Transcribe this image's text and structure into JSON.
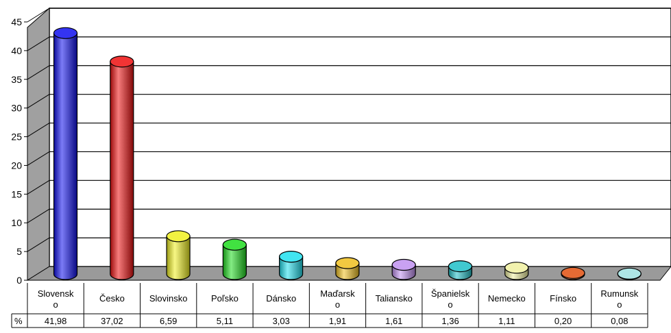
{
  "chart_data": {
    "type": "bar",
    "style": "3d-cylinder",
    "categories": [
      "Slovensko",
      "Česko",
      "Slovinsko",
      "Poľsko",
      "Dánsko",
      "Maďarsko",
      "Taliansko",
      "Španielsko",
      "Nemecko",
      "Fínsko",
      "Rumunsko"
    ],
    "category_labels_display": [
      [
        "Slovensk",
        "o"
      ],
      [
        "Česko"
      ],
      [
        "Slovinsko"
      ],
      [
        "Poľsko"
      ],
      [
        "Dánsko"
      ],
      [
        "Maďarsk",
        "o"
      ],
      [
        "Taliansko"
      ],
      [
        "Španielsk",
        "o"
      ],
      [
        "Nemecko"
      ],
      [
        "Fínsko"
      ],
      [
        "Rumunsk",
        "o"
      ]
    ],
    "values": [
      41.98,
      37.02,
      6.59,
      5.11,
      3.03,
      1.91,
      1.61,
      1.36,
      1.11,
      0.2,
      0.08
    ],
    "value_labels": [
      "41,98",
      "37,02",
      "6,59",
      "5,11",
      "3,03",
      "1,91",
      "1,61",
      "1,36",
      "1,11",
      "0,20",
      "0,08"
    ],
    "colors": [
      "#1010ee",
      "#ee1010",
      "#f0f020",
      "#20dd20",
      "#20e0ee",
      "#f0c020",
      "#c090f0",
      "#20c0c8",
      "#f0f0a0",
      "#e05010",
      "#a0e0e0"
    ],
    "series_label": "%",
    "yticks": [
      "0",
      "5",
      "10",
      "15",
      "20",
      "25",
      "30",
      "35",
      "40",
      "45"
    ],
    "ylim": [
      0,
      45
    ],
    "grid": true,
    "legend": "data table below chart",
    "title": "",
    "xlabel": "",
    "ylabel": ""
  }
}
